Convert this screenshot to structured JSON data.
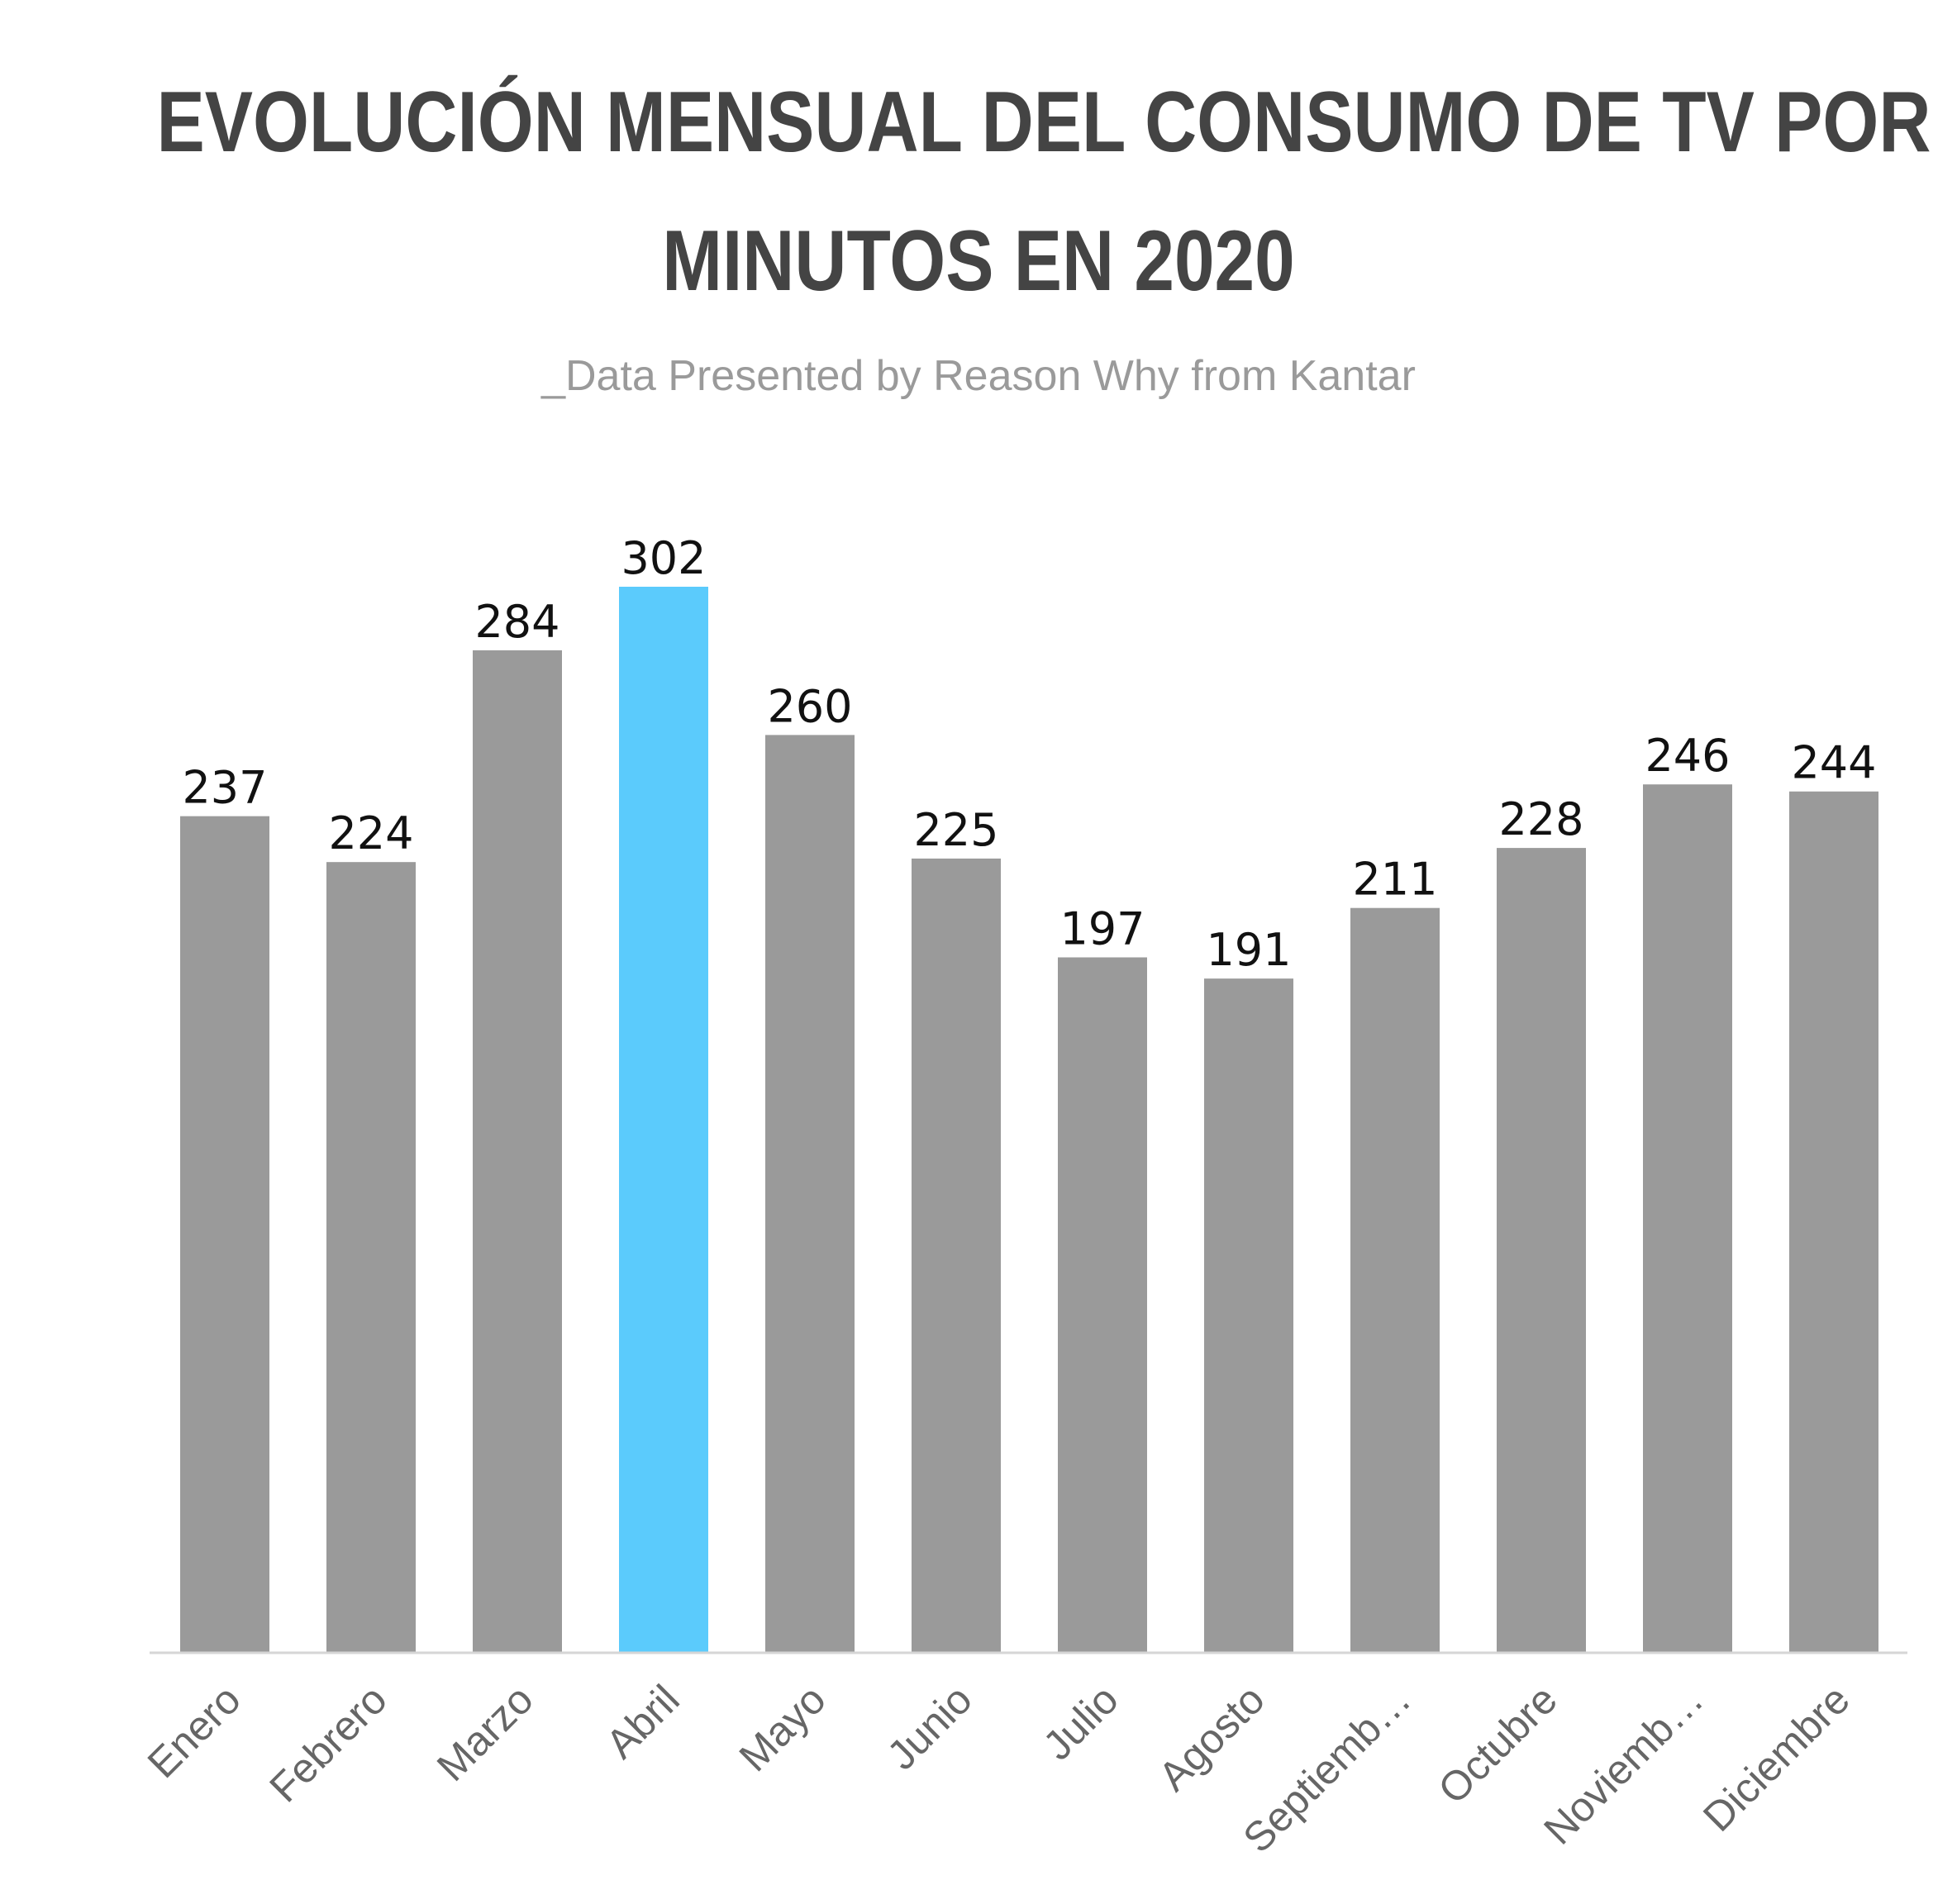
{
  "header": {
    "title_line1": "EVOLUCIÓN MENSUAL DEL CONSUMO DE TV POR",
    "title_line2": "MINUTOS EN 2020",
    "subtitle": "_Data Presented by Reason Why from Kantar"
  },
  "chart_data": {
    "type": "bar",
    "title": "EVOLUCIÓN MENSUAL DEL CONSUMO DE TV POR MINUTOS EN 2020",
    "subtitle": "_Data Presented by Reason Why from Kantar",
    "categories": [
      "Enero",
      "Febrero",
      "Marzo",
      "Abril",
      "Mayo",
      "Junio",
      "Julio",
      "Agosto",
      "Septiemb…",
      "Octubre",
      "Noviemb…",
      "Diciembre"
    ],
    "values": [
      237,
      224,
      284,
      302,
      260,
      225,
      197,
      191,
      211,
      228,
      246,
      244
    ],
    "highlight_category": "Abril",
    "colors": {
      "bar": "#9a9a9a",
      "highlight": "#5bcbfc",
      "axis": "#d6d6d6",
      "title": "#444444",
      "subtitle": "#9a9a9a"
    },
    "data_labels": true,
    "grid": false,
    "legend": "none",
    "ylim": [
      0,
      302
    ]
  }
}
